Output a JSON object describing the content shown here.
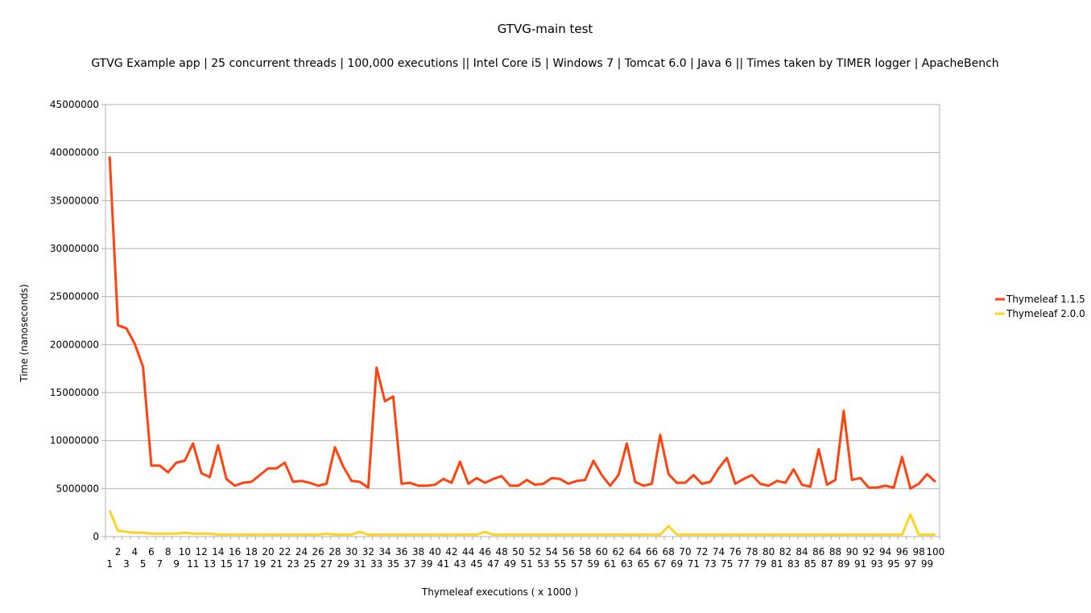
{
  "chart_data": {
    "type": "line",
    "title": "GTVG-main test",
    "subtitle": "GTVG Example app | 25 concurrent threads | 100,000 executions || Intel Core i5 | Windows 7 | Tomcat 6.0 | Java 6 || Times taken by TIMER logger | ApacheBench",
    "xlabel": "Thymeleaf executions  ( x 1000 )",
    "ylabel": "Time (nanoseconds)",
    "ylim": [
      0,
      45000000
    ],
    "yticks": [
      0,
      5000000,
      10000000,
      15000000,
      20000000,
      25000000,
      30000000,
      35000000,
      40000000,
      45000000
    ],
    "ytick_labels": [
      "0",
      "5000000",
      "10000000",
      "15000000",
      "20000000",
      "25000000",
      "30000000",
      "35000000",
      "40000000",
      "45000000"
    ],
    "x": [
      1,
      2,
      3,
      4,
      5,
      6,
      7,
      8,
      9,
      10,
      11,
      12,
      13,
      14,
      15,
      16,
      17,
      18,
      19,
      20,
      21,
      22,
      23,
      24,
      25,
      26,
      27,
      28,
      29,
      30,
      31,
      32,
      33,
      34,
      35,
      36,
      37,
      38,
      39,
      40,
      41,
      42,
      43,
      44,
      45,
      46,
      47,
      48,
      49,
      50,
      51,
      52,
      53,
      54,
      55,
      56,
      57,
      58,
      59,
      60,
      61,
      62,
      63,
      64,
      65,
      66,
      67,
      68,
      69,
      70,
      71,
      72,
      73,
      74,
      75,
      76,
      77,
      78,
      79,
      80,
      81,
      82,
      83,
      84,
      85,
      86,
      87,
      88,
      89,
      90,
      91,
      92,
      93,
      94,
      95,
      96,
      97,
      98,
      99,
      100
    ],
    "grid": true,
    "legend": "right",
    "series": [
      {
        "name": "Thymeleaf 1.1.5",
        "color": "#ff420e",
        "values": [
          39600000,
          22000000,
          21700000,
          20100000,
          17700000,
          7400000,
          7400000,
          6700000,
          7700000,
          7900000,
          9700000,
          6600000,
          6200000,
          9500000,
          6000000,
          5300000,
          5600000,
          5700000,
          6400000,
          7100000,
          7100000,
          7700000,
          5700000,
          5800000,
          5600000,
          5300000,
          5500000,
          9300000,
          7300000,
          5800000,
          5700000,
          5100000,
          17600000,
          14100000,
          14600000,
          5500000,
          5600000,
          5300000,
          5300000,
          5400000,
          6000000,
          5600000,
          7800000,
          5500000,
          6100000,
          5600000,
          6000000,
          6300000,
          5300000,
          5300000,
          5900000,
          5400000,
          5500000,
          6100000,
          6000000,
          5500000,
          5800000,
          5900000,
          7900000,
          6400000,
          5300000,
          6400000,
          9700000,
          5700000,
          5300000,
          5500000,
          10600000,
          6500000,
          5600000,
          5600000,
          6400000,
          5500000,
          5700000,
          7100000,
          8200000,
          5500000,
          6000000,
          6400000,
          5500000,
          5300000,
          5800000,
          5600000,
          7000000,
          5400000,
          5200000,
          9100000,
          5400000,
          5900000,
          13100000,
          5900000,
          6100000,
          5100000,
          5100000,
          5300000,
          5100000,
          8300000,
          5000000,
          5500000,
          6500000,
          5700000
        ]
      },
      {
        "name": "Thymeleaf 2.0.0",
        "color": "#ffd320",
        "values": [
          2700000,
          600000,
          500000,
          400000,
          400000,
          300000,
          300000,
          300000,
          300000,
          400000,
          300000,
          300000,
          300000,
          200000,
          200000,
          200000,
          200000,
          200000,
          200000,
          200000,
          200000,
          200000,
          200000,
          200000,
          200000,
          200000,
          300000,
          200000,
          200000,
          200000,
          500000,
          200000,
          200000,
          200000,
          200000,
          200000,
          200000,
          200000,
          200000,
          200000,
          200000,
          200000,
          200000,
          200000,
          200000,
          500000,
          200000,
          200000,
          200000,
          200000,
          200000,
          200000,
          200000,
          200000,
          200000,
          200000,
          200000,
          200000,
          200000,
          200000,
          200000,
          200000,
          200000,
          200000,
          200000,
          200000,
          200000,
          1100000,
          200000,
          200000,
          200000,
          200000,
          200000,
          200000,
          200000,
          200000,
          200000,
          200000,
          200000,
          200000,
          200000,
          200000,
          200000,
          200000,
          200000,
          200000,
          200000,
          200000,
          200000,
          200000,
          200000,
          200000,
          200000,
          200000,
          200000,
          200000,
          2300000,
          200000,
          200000,
          200000
        ]
      }
    ]
  }
}
